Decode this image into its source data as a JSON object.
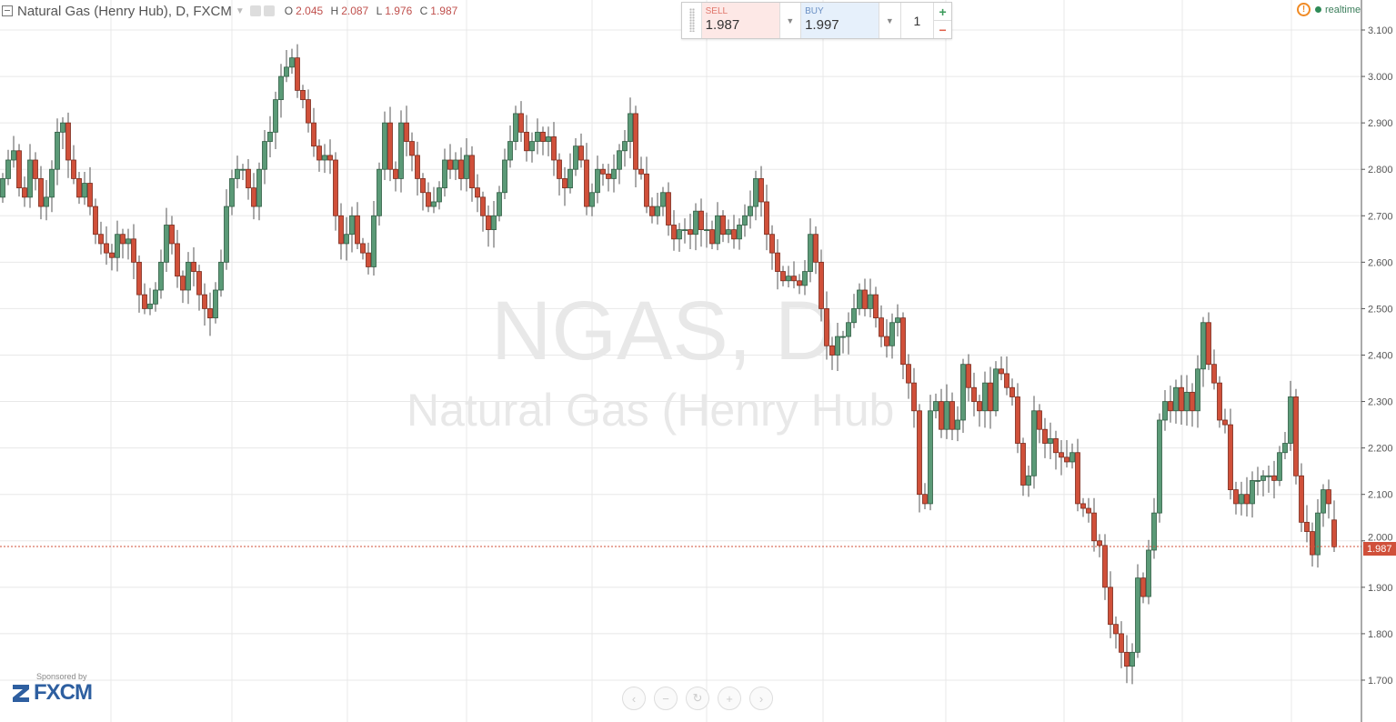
{
  "header": {
    "title": "Natural Gas (Henry Hub), D, FXCM",
    "o_label": "O",
    "o": "2.045",
    "h_label": "H",
    "h": "2.087",
    "l_label": "L",
    "l": "1.976",
    "c_label": "C",
    "c": "1.987"
  },
  "trade_panel": {
    "sell_label": "SELL",
    "sell_price": "1.987",
    "buy_label": "BUY",
    "buy_price": "1.997",
    "quantity": "1",
    "plus": "+",
    "minus": "−"
  },
  "status": {
    "label": "realtime",
    "color": "#2e8b57"
  },
  "sponsor": {
    "label": "Sponsored by",
    "brand": "FXCM"
  },
  "nav_buttons": [
    "‹",
    "−",
    "↻",
    "+",
    "›"
  ],
  "watermark": {
    "symbol": "NGAS, D",
    "name": "Natural Gas (Henry Hub"
  },
  "colors": {
    "up": "#5b9a77",
    "down": "#d0503a",
    "up_border": "#2f5d43",
    "down_border": "#7a2a1c",
    "last_price": "#d0503a"
  },
  "chart_data": {
    "type": "candlestick",
    "title": "Natural Gas (Henry Hub), D, FXCM",
    "ylim": [
      1.65,
      3.12
    ],
    "yticks": [
      "3.100",
      "3.000",
      "2.900",
      "2.800",
      "2.700",
      "2.600",
      "2.500",
      "2.400",
      "2.300",
      "2.200",
      "2.100",
      "2.000",
      "1.900",
      "1.800",
      "1.700"
    ],
    "grid": true,
    "last_price": "1.987",
    "first_open": 2.74,
    "closes": [
      2.78,
      2.82,
      2.84,
      2.76,
      2.74,
      2.82,
      2.78,
      2.72,
      2.74,
      2.8,
      2.88,
      2.9,
      2.82,
      2.78,
      2.74,
      2.77,
      2.72,
      2.66,
      2.64,
      2.62,
      2.61,
      2.66,
      2.64,
      2.65,
      2.6,
      2.53,
      2.5,
      2.51,
      2.54,
      2.6,
      2.68,
      2.64,
      2.57,
      2.54,
      2.6,
      2.58,
      2.53,
      2.5,
      2.48,
      2.54,
      2.6,
      2.72,
      2.78,
      2.8,
      2.8,
      2.76,
      2.72,
      2.8,
      2.86,
      2.88,
      2.95,
      3.0,
      3.02,
      3.04,
      2.97,
      2.95,
      2.9,
      2.85,
      2.82,
      2.83,
      2.82,
      2.7,
      2.64,
      2.66,
      2.7,
      2.64,
      2.62,
      2.59,
      2.7,
      2.8,
      2.9,
      2.8,
      2.78,
      2.9,
      2.86,
      2.83,
      2.78,
      2.75,
      2.72,
      2.73,
      2.76,
      2.82,
      2.8,
      2.82,
      2.78,
      2.83,
      2.76,
      2.74,
      2.7,
      2.67,
      2.7,
      2.75,
      2.82,
      2.86,
      2.92,
      2.88,
      2.84,
      2.86,
      2.88,
      2.86,
      2.87,
      2.82,
      2.78,
      2.76,
      2.8,
      2.85,
      2.82,
      2.72,
      2.75,
      2.8,
      2.79,
      2.78,
      2.8,
      2.84,
      2.86,
      2.92,
      2.8,
      2.79,
      2.72,
      2.7,
      2.72,
      2.75,
      2.68,
      2.65,
      2.67,
      2.67,
      2.66,
      2.71,
      2.67,
      2.67,
      2.64,
      2.7,
      2.66,
      2.67,
      2.65,
      2.68,
      2.7,
      2.72,
      2.78,
      2.73,
      2.66,
      2.62,
      2.58,
      2.56,
      2.57,
      2.56,
      2.55,
      2.58,
      2.66,
      2.6,
      2.5,
      2.42,
      2.4,
      2.44,
      2.44,
      2.47,
      2.5,
      2.54,
      2.5,
      2.53,
      2.48,
      2.44,
      2.42,
      2.47,
      2.48,
      2.38,
      2.34,
      2.28,
      2.1,
      2.08,
      2.28,
      2.3,
      2.24,
      2.3,
      2.24,
      2.26,
      2.38,
      2.33,
      2.3,
      2.28,
      2.34,
      2.28,
      2.37,
      2.36,
      2.33,
      2.31,
      2.21,
      2.12,
      2.14,
      2.28,
      2.24,
      2.21,
      2.22,
      2.19,
      2.18,
      2.17,
      2.19,
      2.08,
      2.07,
      2.06,
      2.0,
      1.99,
      1.9,
      1.82,
      1.8,
      1.76,
      1.73,
      1.76,
      1.92,
      1.88,
      1.98,
      2.06,
      2.26,
      2.3,
      2.28,
      2.33,
      2.28,
      2.32,
      2.28,
      2.37,
      2.47,
      2.38,
      2.34,
      2.26,
      2.25,
      2.11,
      2.08,
      2.1,
      2.08,
      2.13,
      2.13,
      2.14,
      2.14,
      2.13,
      2.19,
      2.21,
      2.31,
      2.14,
      2.04,
      2.02,
      1.97,
      2.06,
      2.11,
      2.08,
      1.987
    ],
    "last_candle": {
      "open": 2.045,
      "high": 2.087,
      "low": 1.976,
      "close": 1.987
    }
  }
}
